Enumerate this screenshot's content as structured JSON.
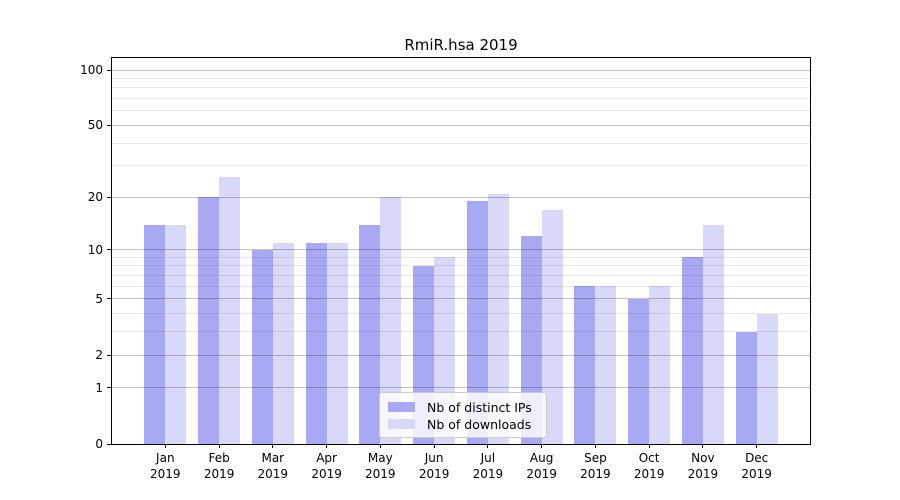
{
  "title": "RmiR.hsa 2019",
  "chart_data": {
    "type": "bar",
    "title": "RmiR.hsa 2019",
    "categories": [
      "Jan",
      "Feb",
      "Mar",
      "Apr",
      "May",
      "Jun",
      "Jul",
      "Aug",
      "Sep",
      "Oct",
      "Nov",
      "Dec"
    ],
    "category_year": "2019",
    "series": [
      {
        "name": "Nb of distinct IPs",
        "color": "#a8a8f3",
        "values": [
          14,
          20,
          10,
          11,
          14,
          8,
          19,
          12,
          6,
          5,
          9,
          3
        ]
      },
      {
        "name": "Nb of downloads",
        "color": "#d8d8f8",
        "values": [
          14,
          26,
          11,
          11,
          20,
          9,
          21,
          17,
          6,
          6,
          14,
          4
        ]
      }
    ],
    "xlabel": "",
    "ylabel": "",
    "y_axis": {
      "scale": "log1p",
      "major_ticks": [
        0,
        1,
        2,
        5,
        10,
        20,
        50,
        100
      ],
      "minor_gridlines": [
        3,
        4,
        6,
        7,
        8,
        9,
        30,
        40,
        60,
        70,
        80,
        90
      ],
      "top_value": 116
    },
    "grid": "on",
    "legend_position": "inside-bottom-center"
  },
  "legend": {
    "items": [
      {
        "label": "Nb of distinct IPs"
      },
      {
        "label": "Nb of downloads"
      }
    ]
  },
  "colors": {
    "bar_distinct_ips": "#a8a8f3",
    "bar_downloads": "#d8d8f8",
    "grid_major": "#c2c2c2",
    "grid_minor": "#e9e9e9",
    "spine": "#000000",
    "legend_border": "#cccccc",
    "text": "#000000"
  }
}
